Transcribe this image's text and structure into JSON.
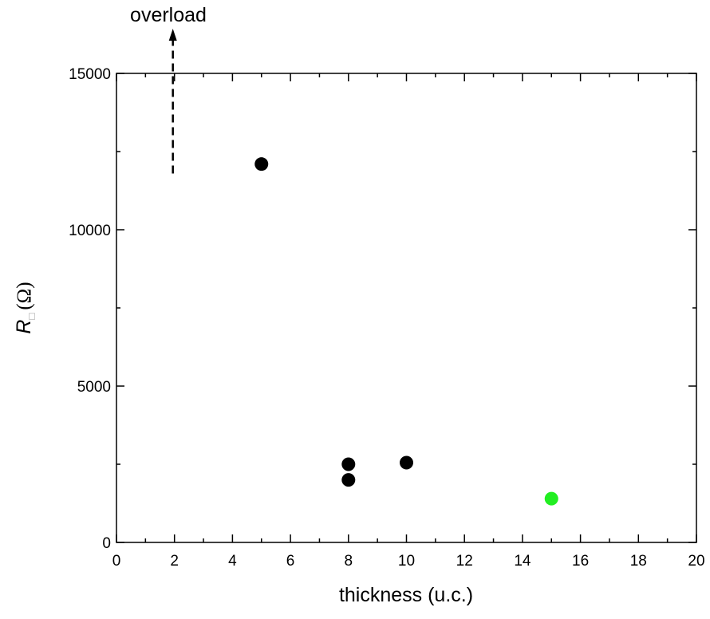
{
  "chart_data": {
    "type": "scatter",
    "title": "",
    "xlabel": "thickness (u.c.)",
    "ylabel_symbol": "R",
    "ylabel_subscript": "□",
    "ylabel_unit": "(Ω)",
    "xlim": [
      0,
      20
    ],
    "ylim": [
      0,
      15000
    ],
    "x_ticks": [
      0,
      2,
      4,
      6,
      8,
      10,
      12,
      14,
      16,
      18,
      20
    ],
    "x_minor_ticks": [
      1,
      3,
      5,
      7,
      9,
      11,
      13,
      15,
      17,
      19
    ],
    "y_ticks": [
      0,
      5000,
      10000,
      15000
    ],
    "y_minor_ticks": [
      2500,
      7500,
      12500
    ],
    "grid": false,
    "series": [
      {
        "color": "#000000",
        "points": [
          {
            "x": 5,
            "y": 12100
          },
          {
            "x": 8,
            "y": 2500
          },
          {
            "x": 8,
            "y": 2000
          },
          {
            "x": 10,
            "y": 2550
          }
        ]
      },
      {
        "color": "#22ee22",
        "points": [
          {
            "x": 15,
            "y": 1400
          }
        ]
      }
    ],
    "annotation": {
      "text": "overload",
      "arrow_x": 2,
      "arrow_y_from": 11800,
      "arrow_style": "dashed"
    }
  }
}
